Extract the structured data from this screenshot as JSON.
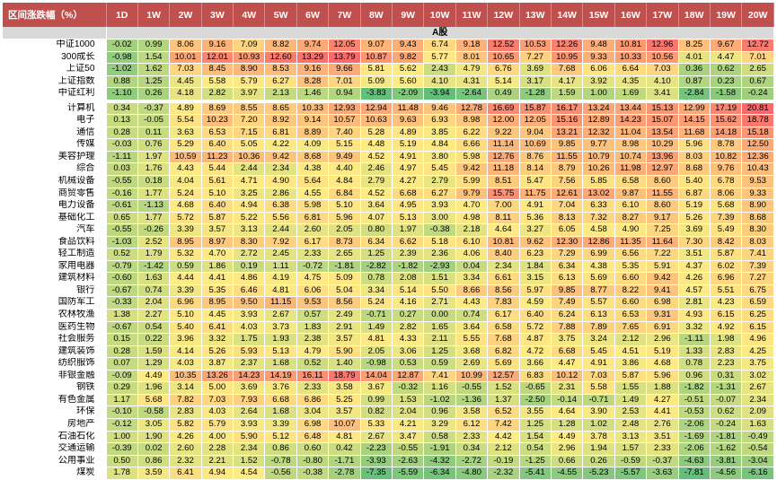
{
  "chart_data": {
    "type": "heatmap",
    "title": "",
    "header_label": "区间涨跌幅（%）",
    "columns": [
      "1D",
      "1W",
      "2W",
      "3W",
      "4W",
      "5W",
      "6W",
      "7W",
      "8W",
      "9W",
      "10W",
      "11W",
      "12W",
      "13W",
      "14W",
      "15W",
      "16W",
      "17W",
      "18W",
      "19W",
      "20W"
    ],
    "section_label": "A股",
    "colors": {
      "header_bg": "#c0504d",
      "low": "#63be7b",
      "mid": "#ffeb84",
      "high": "#f8696b",
      "section_bg": "#d9d9d9"
    },
    "groups": [
      {
        "rows": [
          {
            "name": "中证1000",
            "values": [
              -0.02,
              0.99,
              8.06,
              9.16,
              7.09,
              8.82,
              9.74,
              12.05,
              9.07,
              9.43,
              6.74,
              9.18,
              12.52,
              10.53,
              12.26,
              9.48,
              10.81,
              12.96,
              8.25,
              9.67,
              12.72
            ]
          },
          {
            "name": "300成长",
            "values": [
              -0.98,
              1.54,
              10.01,
              12.01,
              10.93,
              12.6,
              13.29,
              13.79,
              10.87,
              9.82,
              5.77,
              8.01,
              10.65,
              7.27,
              10.95,
              9.33,
              10.33,
              10.56,
              4.01,
              4.47,
              7.01
            ]
          },
          {
            "name": "上证50",
            "values": [
              -1.02,
              1.62,
              7.03,
              8.45,
              8.9,
              8.53,
              9.16,
              9.66,
              5.81,
              5.62,
              2.43,
              4.79,
              6.76,
              3.69,
              7.68,
              6.06,
              6.64,
              7.03,
              0.36,
              0.62,
              2.65
            ]
          },
          {
            "name": "上证指数",
            "values": [
              0.88,
              1.25,
              4.45,
              5.58,
              5.79,
              6.27,
              8.28,
              7.01,
              5.09,
              5.6,
              4.1,
              4.31,
              5.14,
              3.17,
              4.17,
              3.92,
              4.35,
              4.1,
              0.87,
              0.23,
              0.67
            ]
          },
          {
            "name": "中证红利",
            "values": [
              -1.1,
              0.26,
              4.18,
              2.82,
              3.97,
              2.13,
              1.46,
              0.94,
              -3.83,
              -2.09,
              -3.94,
              -2.64,
              0.49,
              -1.28,
              1.59,
              1.0,
              1.69,
              3.41,
              -2.84,
              -1.58,
              -0.24
            ]
          }
        ]
      },
      {
        "rows": [
          {
            "name": "计算机",
            "values": [
              0.34,
              -0.37,
              4.89,
              8.69,
              8.55,
              8.65,
              10.33,
              12.93,
              12.94,
              11.48,
              9.46,
              12.78,
              16.69,
              15.87,
              16.17,
              13.24,
              13.44,
              15.13,
              12.99,
              17.19,
              20.81
            ]
          },
          {
            "name": "电子",
            "values": [
              0.13,
              -0.05,
              5.54,
              10.23,
              7.2,
              8.92,
              9.14,
              10.57,
              10.63,
              9.63,
              6.93,
              8.98,
              12.0,
              12.05,
              15.16,
              12.89,
              14.23,
              15.07,
              14.15,
              15.62,
              18.78
            ]
          },
          {
            "name": "通信",
            "values": [
              0.28,
              0.11,
              3.63,
              6.53,
              7.15,
              6.81,
              8.89,
              7.4,
              5.28,
              4.89,
              3.85,
              6.22,
              9.22,
              9.04,
              13.21,
              12.32,
              11.04,
              13.54,
              11.68,
              14.18,
              15.18
            ]
          },
          {
            "name": "传媒",
            "values": [
              -0.03,
              0.76,
              5.29,
              6.4,
              5.05,
              4.22,
              4.09,
              5.15,
              4.48,
              5.19,
              4.84,
              6.66,
              11.14,
              10.69,
              9.85,
              9.77,
              8.98,
              10.29,
              5.96,
              8.78,
              12.5
            ]
          },
          {
            "name": "美容护理",
            "values": [
              -1.11,
              1.97,
              10.59,
              11.23,
              10.36,
              9.42,
              8.68,
              9.49,
              4.52,
              4.91,
              3.8,
              5.98,
              12.76,
              8.76,
              11.55,
              10.79,
              10.74,
              13.96,
              8.03,
              10.82,
              12.36
            ]
          },
          {
            "name": "综合",
            "values": [
              0.03,
              1.76,
              4.43,
              5.44,
              2.44,
              2.34,
              4.38,
              4.4,
              2.46,
              4.97,
              5.45,
              9.42,
              11.18,
              8.14,
              8.79,
              10.26,
              11.98,
              12.97,
              8.68,
              9.76,
              10.43
            ]
          },
          {
            "name": "机械设备",
            "values": [
              -0.55,
              0.18,
              4.04,
              5.61,
              4.71,
              4.9,
              5.64,
              4.84,
              2.79,
              4.27,
              2.79,
              5.99,
              8.51,
              5.47,
              7.56,
              5.85,
              6.58,
              8.6,
              5.4,
              6.78,
              9.53
            ]
          },
          {
            "name": "商贸零售",
            "values": [
              -0.16,
              1.77,
              5.24,
              5.1,
              3.25,
              2.86,
              4.55,
              6.84,
              4.52,
              6.68,
              6.27,
              9.79,
              15.75,
              11.75,
              12.61,
              13.02,
              9.87,
              11.55,
              6.87,
              8.06,
              9.33
            ]
          },
          {
            "name": "电力设备",
            "values": [
              -0.61,
              -1.13,
              4.68,
              6.4,
              4.94,
              6.38,
              5.98,
              5.1,
              3.64,
              4.95,
              3.93,
              4.7,
              7.0,
              4.91,
              7.04,
              6.33,
              6.1,
              8.6,
              5.19,
              5.68,
              8.9
            ]
          },
          {
            "name": "基础化工",
            "values": [
              0.65,
              1.77,
              5.72,
              5.87,
              5.22,
              5.56,
              6.81,
              5.96,
              4.07,
              5.13,
              3.0,
              4.98,
              8.11,
              5.36,
              8.13,
              7.32,
              8.27,
              9.17,
              5.26,
              7.39,
              8.68
            ]
          },
          {
            "name": "汽车",
            "values": [
              -0.55,
              -0.26,
              3.39,
              3.57,
              3.13,
              2.44,
              2.6,
              2.05,
              0.8,
              1.97,
              -0.38,
              2.18,
              4.64,
              3.27,
              6.05,
              4.58,
              4.9,
              7.25,
              3.69,
              5.49,
              8.3
            ]
          },
          {
            "name": "食品饮料",
            "values": [
              -1.03,
              2.52,
              8.95,
              8.97,
              8.3,
              7.92,
              6.17,
              8.73,
              6.34,
              6.62,
              5.18,
              6.1,
              10.81,
              9.62,
              12.3,
              12.86,
              11.35,
              11.64,
              7.3,
              8.42,
              8.03
            ]
          },
          {
            "name": "轻工制造",
            "values": [
              0.52,
              1.79,
              5.32,
              4.7,
              2.72,
              2.45,
              2.33,
              2.65,
              1.25,
              2.39,
              2.36,
              4.06,
              8.4,
              6.23,
              7.29,
              6.99,
              6.56,
              7.22,
              3.51,
              5.87,
              7.41
            ]
          },
          {
            "name": "家用电器",
            "values": [
              -0.79,
              -1.42,
              0.59,
              1.86,
              0.19,
              1.11,
              -0.72,
              -1.81,
              -2.82,
              -1.82,
              -2.93,
              0.04,
              2.34,
              1.84,
              6.34,
              4.38,
              5.35,
              5.91,
              4.37,
              6.02,
              7.39
            ]
          },
          {
            "name": "建筑材料",
            "values": [
              -0.6,
              1.63,
              4.44,
              4.41,
              4.86,
              4.19,
              4.75,
              5.09,
              0.78,
              2.08,
              1.51,
              3.34,
              6.61,
              3.15,
              6.13,
              5.69,
              6.6,
              9.42,
              4.26,
              6.96,
              7.27
            ]
          },
          {
            "name": "银行",
            "values": [
              -0.67,
              0.74,
              3.39,
              5.35,
              6.46,
              4.81,
              6.06,
              5.04,
              3.34,
              5.14,
              5.5,
              8.66,
              8.56,
              5.97,
              9.85,
              8.77,
              8.22,
              9.41,
              4.57,
              5.51,
              6.75
            ]
          },
          {
            "name": "国防军工",
            "values": [
              -0.33,
              2.04,
              6.96,
              8.95,
              9.5,
              11.15,
              9.53,
              8.56,
              5.24,
              4.16,
              2.71,
              4.43,
              7.83,
              4.59,
              7.49,
              5.57,
              6.6,
              6.98,
              2.81,
              4.23,
              6.59
            ]
          },
          {
            "name": "农林牧渔",
            "values": [
              1.38,
              2.27,
              5.1,
              4.45,
              3.93,
              2.67,
              0.57,
              2.49,
              -0.71,
              0.27,
              0.0,
              0.74,
              6.17,
              6.4,
              6.24,
              6.13,
              6.53,
              9.31,
              4.93,
              6.15,
              6.25
            ]
          },
          {
            "name": "医药生物",
            "values": [
              -0.67,
              0.54,
              5.4,
              6.41,
              4.03,
              3.73,
              1.83,
              2.91,
              1.49,
              2.82,
              1.65,
              3.64,
              6.58,
              5.72,
              7.88,
              7.89,
              7.65,
              6.91,
              3.32,
              4.92,
              6.15
            ]
          },
          {
            "name": "社会服务",
            "values": [
              0.15,
              0.22,
              3.96,
              3.32,
              1.75,
              1.93,
              2.38,
              3.57,
              4.81,
              4.33,
              2.11,
              5.55,
              7.68,
              4.87,
              3.75,
              3.24,
              2.12,
              2.96,
              -1.11,
              1.98,
              4.96
            ]
          },
          {
            "name": "建筑装饰",
            "values": [
              0.28,
              1.59,
              4.14,
              5.26,
              5.93,
              5.13,
              4.79,
              5.9,
              2.05,
              3.06,
              1.25,
              3.68,
              6.82,
              4.72,
              6.68,
              5.45,
              4.51,
              5.19,
              1.33,
              2.83,
              4.25
            ]
          },
          {
            "name": "纺织服饰",
            "values": [
              0.07,
              1.29,
              4.03,
              3.87,
              2.37,
              1.68,
              0.52,
              1.4,
              -0.98,
              0.53,
              0.59,
              2.69,
              5.69,
              3.66,
              4.47,
              4.91,
              3.86,
              4.68,
              0.78,
              2.23,
              3.75
            ]
          },
          {
            "name": "非银金融",
            "values": [
              -0.09,
              4.49,
              10.35,
              13.26,
              14.23,
              14.19,
              16.11,
              18.79,
              14.04,
              12.87,
              7.41,
              10.99,
              12.57,
              6.83,
              10.12,
              7.03,
              5.87,
              5.96,
              0.96,
              0.31,
              3.02
            ]
          },
          {
            "name": "钢铁",
            "values": [
              0.29,
              1.96,
              3.14,
              5.0,
              3.69,
              3.76,
              2.33,
              3.58,
              3.67,
              -0.32,
              1.16,
              -0.55,
              1.52,
              -0.65,
              2.31,
              5.58,
              1.55,
              1.88,
              -1.82,
              -1.31,
              2.67
            ]
          },
          {
            "name": "有色金属",
            "values": [
              1.17,
              5.68,
              7.82,
              7.03,
              7.93,
              6.68,
              6.86,
              5.25,
              0.99,
              1.53,
              -1.02,
              -1.36,
              1.37,
              -2.5,
              -0.14,
              -0.71,
              1.49,
              4.27,
              -0.51,
              -0.07,
              2.34
            ]
          },
          {
            "name": "环保",
            "values": [
              -0.1,
              -0.58,
              2.83,
              4.03,
              2.64,
              1.68,
              3.04,
              3.57,
              0.82,
              2.04,
              0.96,
              3.58,
              6.52,
              3.55,
              4.64,
              3.9,
              2.53,
              4.41,
              -0.53,
              0.62,
              2.09
            ]
          },
          {
            "name": "房地产",
            "values": [
              -0.12,
              3.05,
              5.82,
              5.79,
              3.93,
              3.39,
              6.98,
              10.07,
              5.33,
              4.21,
              3.29,
              6.12,
              7.42,
              1.25,
              1.28,
              1.02,
              2.48,
              2.76,
              -2.06,
              -0.24,
              1.63
            ]
          },
          {
            "name": "石油石化",
            "values": [
              1.0,
              1.9,
              4.26,
              4.0,
              5.9,
              5.12,
              6.48,
              4.81,
              2.67,
              3.47,
              0.58,
              2.33,
              4.42,
              1.54,
              4.49,
              3.78,
              3.13,
              3.51,
              -1.69,
              -1.81,
              -0.49
            ]
          },
          {
            "name": "交通运输",
            "values": [
              -0.39,
              0.02,
              2.6,
              2.28,
              2.34,
              0.86,
              0.6,
              0.42,
              -2.23,
              -0.55,
              -1.91,
              0.34,
              2.12,
              0.54,
              2.96,
              1.94,
              1.57,
              2.33,
              -2.06,
              -1.62,
              -0.54
            ]
          },
          {
            "name": "公用事业",
            "values": [
              0.5,
              0.86,
              2.32,
              2.21,
              1.52,
              -0.78,
              -0.8,
              -1.71,
              -3.93,
              -2.63,
              -4.32,
              -2.72,
              -0.19,
              -1.25,
              0.66,
              0.26,
              -0.59,
              -0.37,
              -4.63,
              -3.81,
              -3.04
            ]
          },
          {
            "name": "煤炭",
            "values": [
              1.78,
              3.59,
              6.41,
              4.94,
              4.54,
              -0.56,
              -0.38,
              -2.78,
              -7.35,
              -5.59,
              -6.34,
              -4.8,
              -2.32,
              -5.41,
              -4.55,
              -5.23,
              -5.57,
              -3.63,
              -7.81,
              -4.56,
              -6.16
            ]
          }
        ]
      }
    ]
  }
}
